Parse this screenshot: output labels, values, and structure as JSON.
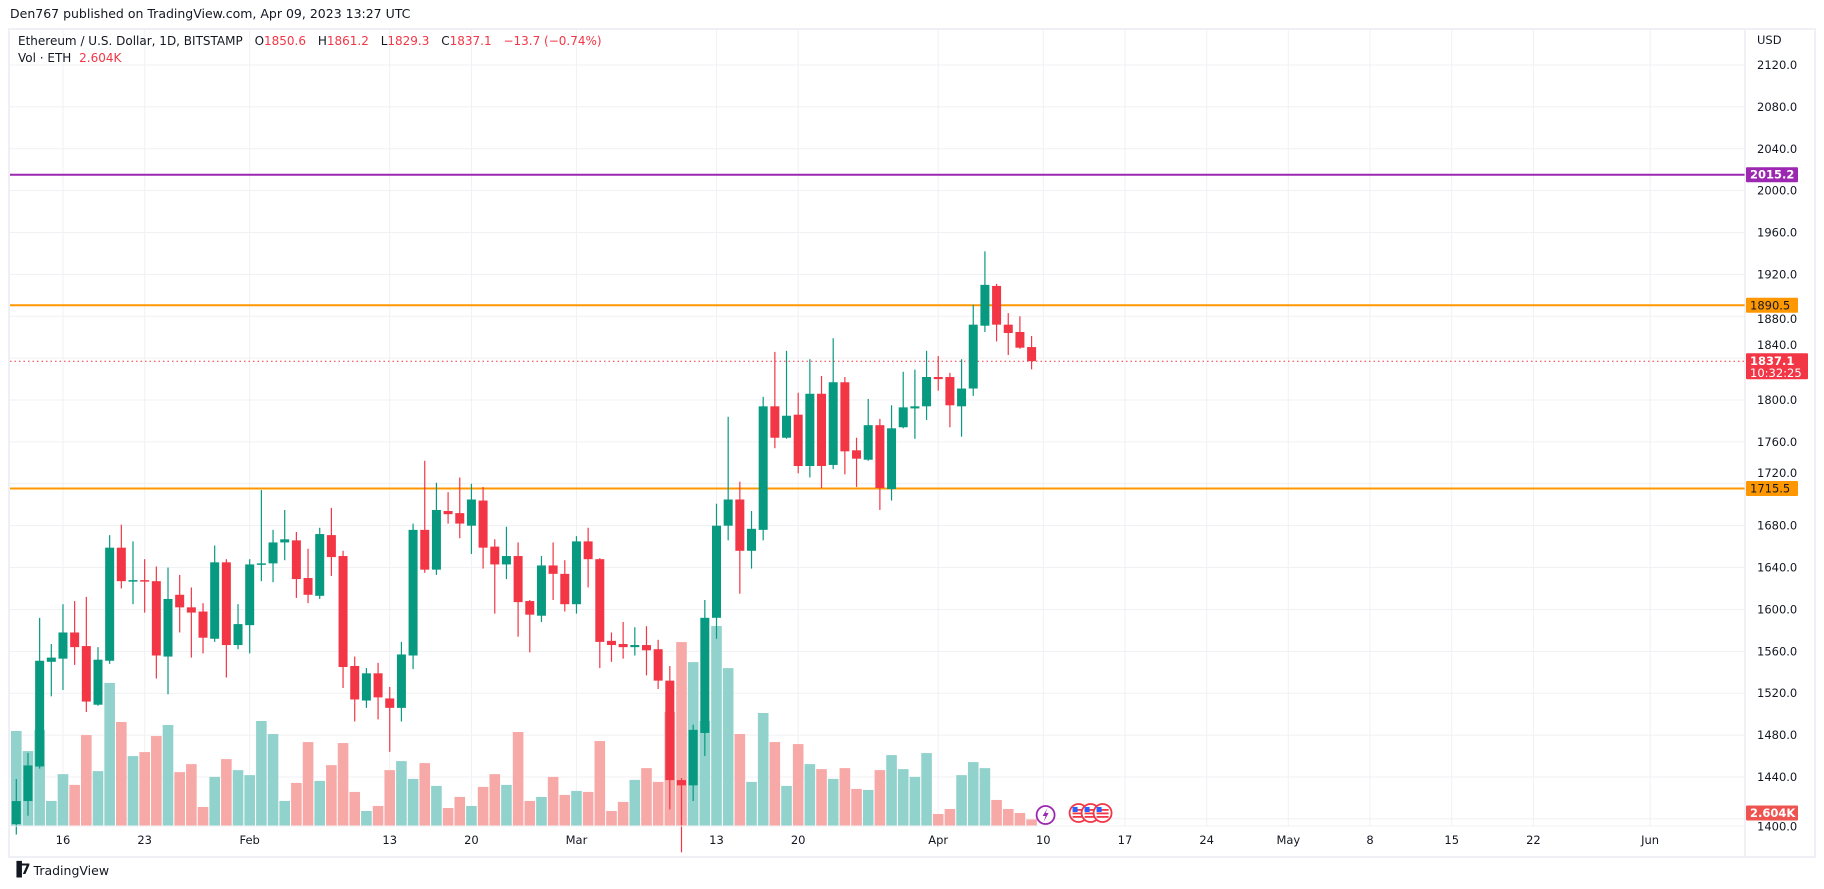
{
  "publisher_line": "Den767 published on TradingView.com, Apr 09, 2023 13:27 UTC",
  "legend": {
    "symbol": "Ethereum / U.S. Dollar, 1D, BITSTAMP",
    "o_label": "O",
    "o": "1850.6",
    "h_label": "H",
    "h": "1861.2",
    "l_label": "L",
    "l": "1829.3",
    "c_label": "C",
    "c": "1837.1",
    "change": "−13.7 (−0.74%)",
    "vol_label": "Vol · ETH",
    "vol": "2.604K"
  },
  "brand": "TradingView",
  "colors": {
    "up": "#089981",
    "down": "#f23645",
    "vol_up": "#92d2cc",
    "vol_down": "#f7a9a7",
    "resistance": "#9c27b0",
    "level": "#ff9800",
    "last_price": "#f23645",
    "vol_label": "#ef5350",
    "grid": "#f0f1f4"
  },
  "chart_data": {
    "type": "candlestick",
    "symbol": "ETHUSD",
    "interval": "1D",
    "currency": "USD",
    "y_unit_label": "USD",
    "ylim": [
      1400,
      2140
    ],
    "y_ticks": [
      "2120.0",
      "2080.0",
      "2040.0",
      "2000.0",
      "1960.0",
      "1920.0",
      "1880.0",
      "1840.0",
      "1800.0",
      "1760.0",
      "1720.0",
      "1680.0",
      "1640.0",
      "1600.0",
      "1560.0",
      "1520.0",
      "1480.0",
      "1440.0",
      "1400.0"
    ],
    "x_ticks": [
      {
        "label": "16",
        "date": "2023-01-16"
      },
      {
        "label": "23",
        "date": "2023-01-23"
      },
      {
        "label": "Feb",
        "date": "2023-02-01"
      },
      {
        "label": "13",
        "date": "2023-02-13"
      },
      {
        "label": "20",
        "date": "2023-02-20"
      },
      {
        "label": "Mar",
        "date": "2023-03-01"
      },
      {
        "label": "13",
        "date": "2023-03-13"
      },
      {
        "label": "20",
        "date": "2023-03-20"
      },
      {
        "label": "Apr",
        "date": "2023-04-01"
      },
      {
        "label": "10",
        "date": "2023-04-10"
      },
      {
        "label": "17",
        "date": "2023-04-17"
      },
      {
        "label": "24",
        "date": "2023-04-24"
      },
      {
        "label": "May",
        "date": "2023-05-01"
      },
      {
        "label": "8",
        "date": "2023-05-08"
      },
      {
        "label": "15",
        "date": "2023-05-15"
      },
      {
        "label": "22",
        "date": "2023-05-22"
      },
      {
        "label": "Jun",
        "date": "2023-06-01"
      }
    ],
    "grid": true,
    "horizontal_lines": [
      {
        "price": 2015.2,
        "label": "2015.2",
        "color": "#9c27b0",
        "style": "solid"
      },
      {
        "price": 1890.5,
        "label": "1890.5",
        "color": "#ff9800",
        "style": "solid"
      },
      {
        "price": 1715.5,
        "label": "1715.5",
        "color": "#ff9800",
        "style": "solid"
      }
    ],
    "last_price": {
      "price": 1837.1,
      "label": "1837.1",
      "countdown": "10:32:25"
    },
    "volume_label": "2.604K",
    "volume_unit": "K ETH",
    "columns": [
      "date",
      "open",
      "high",
      "low",
      "close",
      "volume"
    ],
    "candles": [
      [
        "2023-01-12",
        1395,
        1438,
        1385,
        1417,
        37.9
      ],
      [
        "2023-01-13",
        1417,
        1463,
        1403,
        1451,
        29.9
      ],
      [
        "2023-01-14",
        1450,
        1592,
        1448,
        1551,
        38.3
      ],
      [
        "2023-01-15",
        1550,
        1567,
        1517,
        1554,
        10.0
      ],
      [
        "2023-01-16",
        1553,
        1605,
        1523,
        1578,
        20.7
      ],
      [
        "2023-01-17",
        1578,
        1608,
        1547,
        1564,
        16.4
      ],
      [
        "2023-01-18",
        1565,
        1612,
        1502,
        1512,
        36.3
      ],
      [
        "2023-01-19",
        1509,
        1564,
        1508,
        1552,
        21.9
      ],
      [
        "2023-01-20",
        1551,
        1671,
        1548,
        1659,
        57.1
      ],
      [
        "2023-01-21",
        1659,
        1681,
        1620,
        1627,
        41.5
      ],
      [
        "2023-01-22",
        1627,
        1665,
        1605,
        1628,
        27.9
      ],
      [
        "2023-01-23",
        1628,
        1648,
        1597,
        1627,
        29.5
      ],
      [
        "2023-01-24",
        1627,
        1641,
        1534,
        1556,
        35.9
      ],
      [
        "2023-01-25",
        1555,
        1640,
        1519,
        1610,
        40.3
      ],
      [
        "2023-01-26",
        1614,
        1633,
        1578,
        1602,
        21.5
      ],
      [
        "2023-01-27",
        1602,
        1621,
        1554,
        1597,
        24.7
      ],
      [
        "2023-01-28",
        1598,
        1606,
        1558,
        1573,
        7.6
      ],
      [
        "2023-01-29",
        1572,
        1661,
        1569,
        1645,
        19.6
      ],
      [
        "2023-01-30",
        1645,
        1648,
        1535,
        1566,
        26.7
      ],
      [
        "2023-01-31",
        1566,
        1605,
        1562,
        1586,
        22.3
      ],
      [
        "2023-02-01",
        1585,
        1648,
        1558,
        1643,
        20.3
      ],
      [
        "2023-02-02",
        1643,
        1714,
        1627,
        1644,
        41.9
      ],
      [
        "2023-02-03",
        1644,
        1676,
        1626,
        1664,
        36.7
      ],
      [
        "2023-02-04",
        1664,
        1695,
        1647,
        1667,
        10.0
      ],
      [
        "2023-02-05",
        1666,
        1674,
        1611,
        1629,
        17.2
      ],
      [
        "2023-02-06",
        1630,
        1658,
        1606,
        1614,
        33.5
      ],
      [
        "2023-02-07",
        1613,
        1678,
        1610,
        1672,
        18.0
      ],
      [
        "2023-02-08",
        1671,
        1697,
        1632,
        1650,
        24.3
      ],
      [
        "2023-02-09",
        1651,
        1656,
        1525,
        1545,
        33.1
      ],
      [
        "2023-02-10",
        1546,
        1555,
        1493,
        1514,
        13.6
      ],
      [
        "2023-02-11",
        1513,
        1544,
        1506,
        1539,
        6.0
      ],
      [
        "2023-02-12",
        1539,
        1549,
        1495,
        1516,
        8.0
      ],
      [
        "2023-02-13",
        1515,
        1526,
        1464,
        1506,
        22.3
      ],
      [
        "2023-02-14",
        1506,
        1569,
        1493,
        1557,
        25.9
      ],
      [
        "2023-02-15",
        1556,
        1682,
        1543,
        1676,
        18.8
      ],
      [
        "2023-02-16",
        1676,
        1742,
        1635,
        1638,
        25.1
      ],
      [
        "2023-02-17",
        1638,
        1721,
        1633,
        1695,
        16.0
      ],
      [
        "2023-02-18",
        1694,
        1712,
        1682,
        1691,
        7.2
      ],
      [
        "2023-02-19",
        1692,
        1726,
        1668,
        1682,
        11.6
      ],
      [
        "2023-02-20",
        1680,
        1720,
        1653,
        1705,
        8.0
      ],
      [
        "2023-02-21",
        1704,
        1717,
        1639,
        1659,
        15.6
      ],
      [
        "2023-02-22",
        1660,
        1667,
        1596,
        1643,
        20.7
      ],
      [
        "2023-02-23",
        1643,
        1679,
        1629,
        1651,
        16.4
      ],
      [
        "2023-02-24",
        1651,
        1664,
        1574,
        1607,
        37.5
      ],
      [
        "2023-02-25",
        1608,
        1609,
        1559,
        1595,
        10.0
      ],
      [
        "2023-02-26",
        1594,
        1651,
        1588,
        1642,
        11.6
      ],
      [
        "2023-02-27",
        1642,
        1664,
        1609,
        1634,
        19.6
      ],
      [
        "2023-02-28",
        1634,
        1647,
        1598,
        1605,
        12.4
      ],
      [
        "2023-03-01",
        1605,
        1670,
        1596,
        1665,
        14.0
      ],
      [
        "2023-03-02",
        1665,
        1678,
        1621,
        1648,
        13.6
      ],
      [
        "2023-03-03",
        1648,
        1649,
        1544,
        1569,
        33.9
      ],
      [
        "2023-03-04",
        1570,
        1578,
        1550,
        1566,
        6.0
      ],
      [
        "2023-03-05",
        1567,
        1588,
        1553,
        1564,
        9.6
      ],
      [
        "2023-03-06",
        1564,
        1583,
        1556,
        1566,
        18.4
      ],
      [
        "2023-03-07",
        1566,
        1584,
        1537,
        1561,
        23.1
      ],
      [
        "2023-03-08",
        1562,
        1571,
        1524,
        1532,
        17.6
      ],
      [
        "2023-03-09",
        1532,
        1546,
        1409,
        1437,
        45.5
      ],
      [
        "2023-03-10",
        1437,
        1439,
        1368,
        1432,
        73.4
      ],
      [
        "2023-03-11",
        1432,
        1490,
        1417,
        1485,
        65.4
      ],
      [
        "2023-03-12",
        1482,
        1609,
        1460,
        1592,
        41.9
      ],
      [
        "2023-03-13",
        1592,
        1701,
        1572,
        1680,
        79.8
      ],
      [
        "2023-03-14",
        1680,
        1784,
        1666,
        1705,
        63.0
      ],
      [
        "2023-03-15",
        1705,
        1722,
        1615,
        1656,
        36.7
      ],
      [
        "2023-03-16",
        1656,
        1694,
        1639,
        1677,
        17.6
      ],
      [
        "2023-03-17",
        1676,
        1803,
        1666,
        1794,
        45.1
      ],
      [
        "2023-03-18",
        1794,
        1846,
        1754,
        1764,
        33.5
      ],
      [
        "2023-03-19",
        1764,
        1847,
        1763,
        1785,
        16.0
      ],
      [
        "2023-03-20",
        1786,
        1807,
        1730,
        1737,
        32.7
      ],
      [
        "2023-03-21",
        1737,
        1839,
        1726,
        1806,
        24.7
      ],
      [
        "2023-03-22",
        1806,
        1823,
        1716,
        1737,
        22.7
      ],
      [
        "2023-03-23",
        1738,
        1859,
        1734,
        1817,
        18.8
      ],
      [
        "2023-03-24",
        1817,
        1822,
        1729,
        1751,
        23.1
      ],
      [
        "2023-03-25",
        1752,
        1764,
        1717,
        1744,
        14.8
      ],
      [
        "2023-03-26",
        1743,
        1801,
        1742,
        1776,
        14.4
      ],
      [
        "2023-03-27",
        1776,
        1782,
        1695,
        1716,
        22.3
      ],
      [
        "2023-03-28",
        1715,
        1795,
        1704,
        1773,
        28.3
      ],
      [
        "2023-03-29",
        1774,
        1827,
        1773,
        1793,
        22.7
      ],
      [
        "2023-03-30",
        1792,
        1829,
        1763,
        1794,
        19.6
      ],
      [
        "2023-03-31",
        1794,
        1847,
        1781,
        1822,
        29.1
      ],
      [
        "2023-04-01",
        1822,
        1842,
        1809,
        1820,
        4.8
      ],
      [
        "2023-04-02",
        1822,
        1826,
        1774,
        1795,
        6.8
      ],
      [
        "2023-04-03",
        1794,
        1839,
        1765,
        1811,
        20.3
      ],
      [
        "2023-04-04",
        1811,
        1891,
        1804,
        1872,
        25.5
      ],
      [
        "2023-04-05",
        1871,
        1942,
        1865,
        1910,
        23.1
      ],
      [
        "2023-04-06",
        1909,
        1911,
        1856,
        1872,
        10.4
      ],
      [
        "2023-04-07",
        1872,
        1883,
        1843,
        1864,
        6.8
      ],
      [
        "2023-04-08",
        1865,
        1880,
        1849,
        1850,
        5.2
      ],
      [
        "2023-04-09",
        1850.6,
        1861.2,
        1829.3,
        1837.1,
        2.604
      ]
    ],
    "events": [
      {
        "type": "lightning-event-icon",
        "color": "#9c27b0"
      },
      {
        "type": "us-flag-economic-event-icon"
      },
      {
        "type": "us-flag-economic-event-icon"
      },
      {
        "type": "us-flag-economic-event-icon"
      }
    ]
  }
}
